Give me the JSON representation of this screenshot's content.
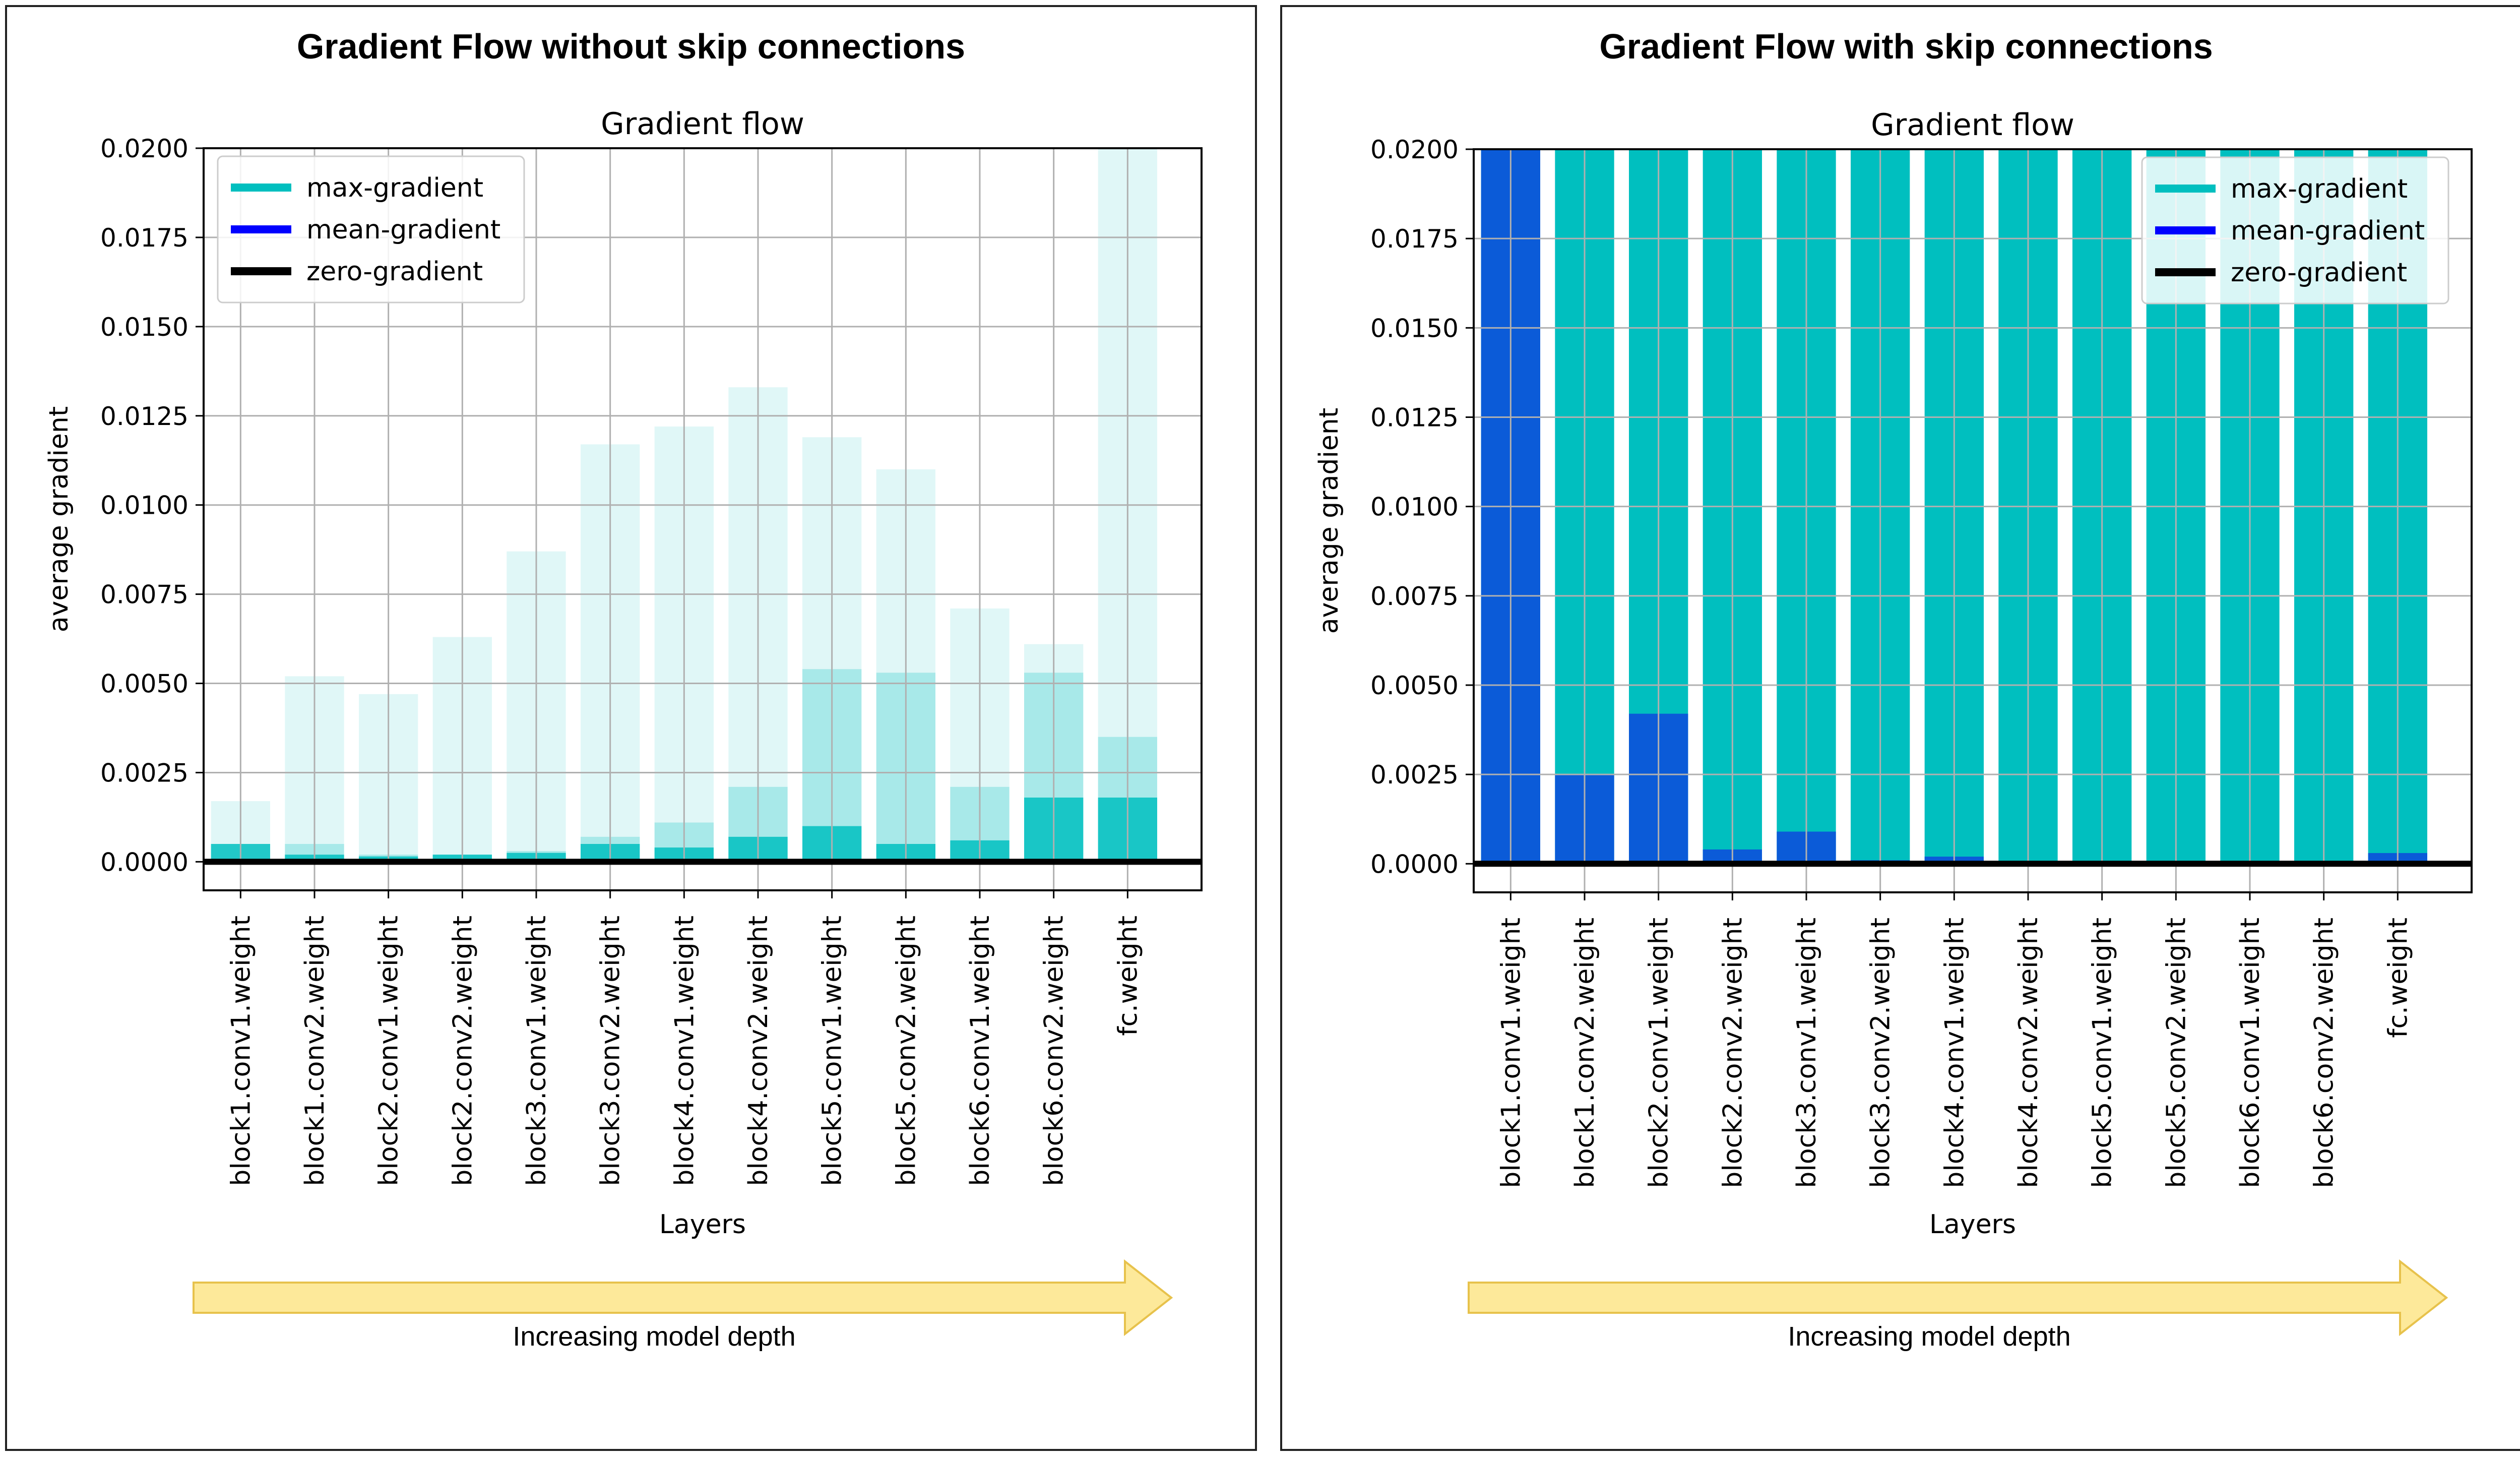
{
  "panels": [
    {
      "title": "Gradient Flow without skip connections",
      "depth_label": "Increasing model depth"
    },
    {
      "title": "Gradient Flow with skip connections",
      "depth_label": "Increasing model depth"
    }
  ],
  "colors": {
    "max": "#00bfbf",
    "mean": "#0000ff",
    "mean_bar": "#0b5bd8",
    "zero": "#000000",
    "arrow_fill": "#fde99a",
    "arrow_stroke": "#e7c24c"
  },
  "chart_data": [
    {
      "type": "bar",
      "title": "Gradient flow",
      "xlabel": "Layers",
      "ylabel": "average gradient",
      "ylim": [
        -0.0008,
        0.02
      ],
      "yticks": [
        "0.0000",
        "0.0025",
        "0.0050",
        "0.0075",
        "0.0100",
        "0.0125",
        "0.0150",
        "0.0175",
        "0.0200"
      ],
      "grid": true,
      "legend_position": "upper-left",
      "legend": [
        "max-gradient",
        "mean-gradient",
        "zero-gradient"
      ],
      "categories": [
        "block1.conv1.weight",
        "block1.conv2.weight",
        "block2.conv1.weight",
        "block2.conv2.weight",
        "block3.conv1.weight",
        "block3.conv2.weight",
        "block4.conv1.weight",
        "block4.conv2.weight",
        "block5.conv1.weight",
        "block5.conv2.weight",
        "block6.conv1.weight",
        "block6.conv2.weight",
        "fc.weight"
      ],
      "series": [
        {
          "name": "max-gradient",
          "style": "faint",
          "values": [
            0.0017,
            0.0052,
            0.0047,
            0.0063,
            0.0087,
            0.0117,
            0.0122,
            0.0133,
            0.0119,
            0.011,
            0.0071,
            0.0061,
            0.02
          ]
        },
        {
          "name": "mean-gradient",
          "values": [
            0.0005,
            0.0002,
            0.00015,
            0.0002,
            0.00025,
            0.0005,
            0.0004,
            0.0007,
            0.001,
            0.0005,
            0.0006,
            0.0018,
            0.0018
          ]
        }
      ],
      "highlights": [
        1e-05,
        0.0005,
        0.0002,
        0.0002,
        0.0003,
        0.0007,
        0.0011,
        0.0021,
        0.0054,
        0.0053,
        0.0021,
        0.0053,
        0.0035
      ]
    },
    {
      "type": "bar",
      "title": "Gradient flow",
      "xlabel": "Layers",
      "ylabel": "average gradient",
      "ylim": [
        -0.0008,
        0.02
      ],
      "yticks": [
        "0.0000",
        "0.0025",
        "0.0050",
        "0.0075",
        "0.0100",
        "0.0125",
        "0.0150",
        "0.0175",
        "0.0200"
      ],
      "grid": true,
      "legend_position": "upper-right",
      "legend": [
        "max-gradient",
        "mean-gradient",
        "zero-gradient"
      ],
      "categories": [
        "block1.conv1.weight",
        "block1.conv2.weight",
        "block2.conv1.weight",
        "block2.conv2.weight",
        "block3.conv1.weight",
        "block3.conv2.weight",
        "block4.conv1.weight",
        "block4.conv2.weight",
        "block5.conv1.weight",
        "block5.conv2.weight",
        "block6.conv1.weight",
        "block6.conv2.weight",
        "fc.weight"
      ],
      "series": [
        {
          "name": "max-gradient",
          "style": "solid",
          "values": [
            0.02,
            0.02,
            0.02,
            0.02,
            0.02,
            0.02,
            0.02,
            0.02,
            0.02,
            0.02,
            0.02,
            0.02,
            0.02
          ]
        },
        {
          "name": "mean-gradient",
          "values": [
            0.02,
            0.0025,
            0.0042,
            0.0004,
            0.0009,
            0.0001,
            0.0002,
            5e-05,
            5e-05,
            3e-05,
            3e-05,
            3e-05,
            0.0003
          ]
        }
      ]
    }
  ]
}
